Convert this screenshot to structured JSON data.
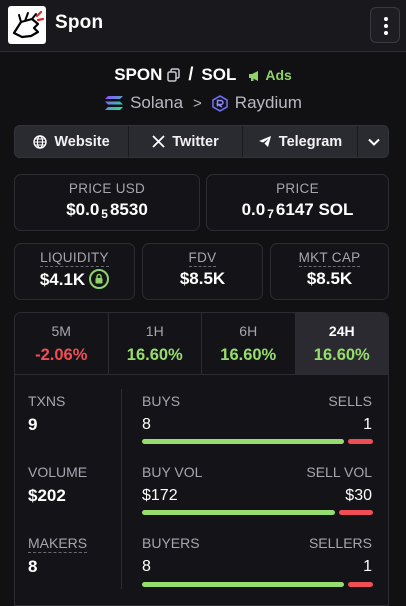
{
  "app": {
    "title": "Spon"
  },
  "pair": {
    "base": "SPON",
    "slash": "/",
    "quote": "SOL",
    "ads_label": "Ads"
  },
  "chain": {
    "network": "Solana",
    "dex": "Raydium"
  },
  "links": [
    {
      "label": "Website",
      "icon": "globe-icon"
    },
    {
      "label": "Twitter",
      "icon": "x-icon"
    },
    {
      "label": "Telegram",
      "icon": "telegram-icon"
    }
  ],
  "price_usd": {
    "label": "PRICE USD",
    "prefix": "$0.0",
    "zeros": "5",
    "digits": "8530"
  },
  "price_sol": {
    "label": "PRICE",
    "prefix": "0.0",
    "zeros": "7",
    "digits": "6147",
    "unit": "SOL"
  },
  "liquidity": {
    "label": "LIQUIDITY",
    "value": "$4.1K"
  },
  "fdv": {
    "label": "FDV",
    "value": "$8.5K"
  },
  "mkt_cap": {
    "label": "MKT CAP",
    "value": "$8.5K"
  },
  "timeframes": [
    {
      "label": "5M",
      "change": "-2.06%",
      "trend": "down"
    },
    {
      "label": "1H",
      "change": "16.60%",
      "trend": "up"
    },
    {
      "label": "6H",
      "change": "16.60%",
      "trend": "up"
    },
    {
      "label": "24H",
      "change": "16.60%",
      "trend": "up",
      "active": true
    }
  ],
  "stats": {
    "txns": {
      "label": "TXNS",
      "value": "9"
    },
    "volume": {
      "label": "VOLUME",
      "value": "$202"
    },
    "makers": {
      "label": "MAKERS",
      "value": "8"
    },
    "buys": {
      "label": "BUYS",
      "value": "8",
      "sells_label": "SELLS",
      "sells_value": "1",
      "buy_fraction": 0.889
    },
    "vol": {
      "label": "BUY VOL",
      "value": "$172",
      "sells_label": "SELL VOL",
      "sells_value": "$30",
      "buy_fraction": 0.851
    },
    "buyers": {
      "label": "BUYERS",
      "value": "8",
      "sells_label": "SELLERS",
      "sells_value": "1",
      "buy_fraction": 0.889
    }
  },
  "colors": {
    "positive": "#97dc6e",
    "negative": "#ef4e55",
    "background": "#111114"
  }
}
